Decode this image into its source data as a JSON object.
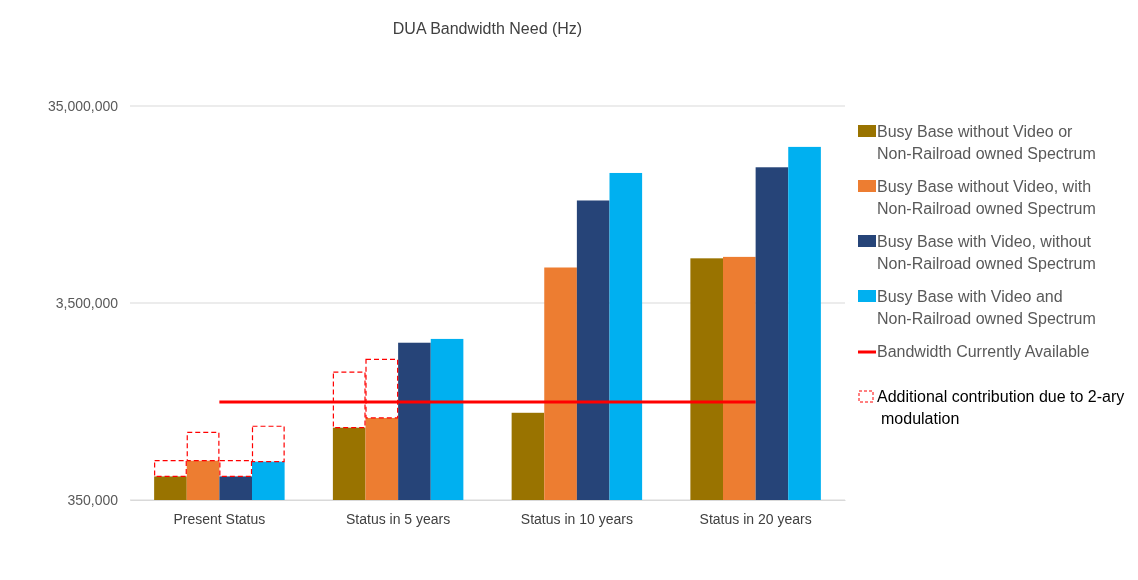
{
  "chart_data": {
    "type": "bar",
    "title": "DUA Bandwidth Need (Hz)",
    "categories": [
      "Present Status",
      "Status in 5 years",
      "Status in 10 years",
      "Status in 20 years"
    ],
    "log": true,
    "grid": "y",
    "legend": "right",
    "ylim": [
      350000,
      35000000
    ],
    "yticks": [
      {
        "value": 350000,
        "label": "350,000"
      },
      {
        "value": 3500000,
        "label": "3,500,000"
      },
      {
        "value": 35000000,
        "label": "35,000,000"
      }
    ],
    "series": [
      {
        "name": "Busy Base without Video or Non-Railroad owned Spectrum",
        "color": "#997300",
        "values": [
          461000,
          815000,
          970000,
          5900000
        ]
      },
      {
        "name": "Busy Base without Video, with Non-Railroad owned Spectrum",
        "color": "#ed7d31",
        "values": [
          554000,
          913000,
          5300000,
          6000000
        ]
      },
      {
        "name": "Busy Base with Video, without Non-Railroad  owned Spectrum",
        "color": "#264478",
        "values": [
          461000,
          2200000,
          11600000,
          17100000
        ]
      },
      {
        "name": "Busy Base with Video and Non-Railroad owned Spectrum",
        "color": "#00b0f0",
        "values": [
          548000,
          2300000,
          16000000,
          21700000
        ]
      },
      {
        "name": "Bandwidth Currently Available",
        "type": "line",
        "color": "#ff0000",
        "values": [
          1100000,
          1100000,
          1100000,
          1100000
        ]
      },
      {
        "name": "Additional contribution due to 2-ary modulation",
        "type": "bar",
        "line_style": "dashed",
        "color": "#ff0000",
        "base": [
          461000,
          815000,
          null,
          null
        ],
        "values": [
          93000,
          745000,
          null,
          null
        ]
      },
      {
        "type": "bar",
        "line_style": "dashed",
        "color": "#ff0000",
        "base": [
          554000,
          913000,
          null,
          null
        ],
        "values": [
          217000,
          897000,
          null,
          null
        ]
      },
      {
        "type": "bar",
        "line_style": "dashed",
        "color": "#ff0000",
        "base": [
          461000,
          null,
          null,
          null
        ],
        "values": [
          93000,
          null,
          null,
          null
        ]
      },
      {
        "type": "bar",
        "line_style": "dashed",
        "color": "#ff0000",
        "base": [
          548000,
          null,
          null,
          null
        ],
        "values": [
          281000,
          null,
          null,
          null
        ]
      }
    ]
  }
}
